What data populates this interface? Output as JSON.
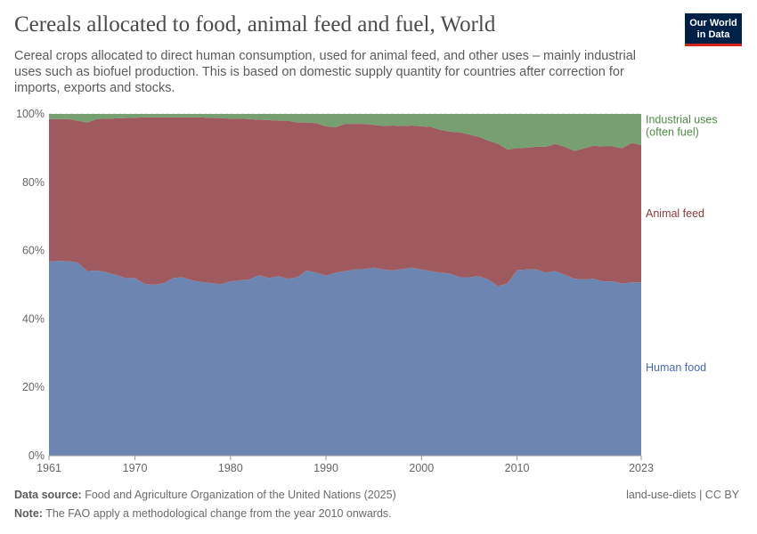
{
  "header": {
    "title": "Cereals allocated to food, animal feed and fuel, World",
    "subtitle": "Cereal crops allocated to direct human consumption, used for animal feed, and other uses – mainly industrial uses such as biofuel production. This is based on domestic supply quantity for countries after correction for imports, exports and stocks.",
    "logo_line1": "Our World",
    "logo_line2": "in Data"
  },
  "footer": {
    "source_label": "Data source:",
    "source_text": "Food and Agriculture Organization of the United Nations (2025)",
    "note_label": "Note:",
    "note_text": "The FAO apply a methodological change from the year 2010 onwards.",
    "license": "land-use-diets | CC BY"
  },
  "colors": {
    "human_food": "#6d86b1",
    "animal_feed": "#9e5a5f",
    "industrial": "#76a070",
    "human_food_label": "#4a6aa6",
    "animal_feed_label": "#8a3a3e",
    "industrial_label": "#4f8a47",
    "grid": "#dddddd",
    "axis_text": "#666666"
  },
  "chart_data": {
    "type": "area",
    "stacked": "percent",
    "x": [
      1961,
      1962,
      1963,
      1964,
      1965,
      1966,
      1967,
      1968,
      1969,
      1970,
      1971,
      1972,
      1973,
      1974,
      1975,
      1976,
      1977,
      1978,
      1979,
      1980,
      1981,
      1982,
      1983,
      1984,
      1985,
      1986,
      1987,
      1988,
      1989,
      1990,
      1991,
      1992,
      1993,
      1994,
      1995,
      1996,
      1997,
      1998,
      1999,
      2000,
      2001,
      2002,
      2003,
      2004,
      2005,
      2006,
      2007,
      2008,
      2009,
      2010,
      2011,
      2012,
      2013,
      2014,
      2015,
      2016,
      2017,
      2018,
      2019,
      2020,
      2021,
      2022,
      2023
    ],
    "x_ticks": [
      "1961",
      "1970",
      "1980",
      "1990",
      "2000",
      "2010",
      "2023"
    ],
    "x_tick_values": [
      1961,
      1970,
      1980,
      1990,
      2000,
      2010,
      2023
    ],
    "y_ticks": [
      "0%",
      "20%",
      "40%",
      "60%",
      "80%",
      "100%"
    ],
    "y_tick_values": [
      0,
      20,
      40,
      60,
      80,
      100
    ],
    "ylim": [
      0,
      100
    ],
    "series": [
      {
        "name": "Human food",
        "color_key": "human_food",
        "values": [
          56.8,
          57.0,
          56.9,
          56.5,
          54.0,
          54.2,
          53.7,
          52.9,
          52.0,
          52.0,
          50.3,
          50.0,
          50.5,
          52.0,
          52.2,
          51.3,
          50.8,
          50.5,
          50.2,
          51.0,
          51.3,
          51.6,
          52.8,
          52.0,
          52.5,
          51.8,
          52.2,
          54.2,
          53.5,
          52.7,
          53.5,
          54.0,
          54.5,
          54.6,
          55.0,
          54.5,
          54.2,
          54.6,
          55.0,
          54.5,
          54.0,
          53.5,
          53.3,
          52.2,
          52.2,
          52.5,
          51.5,
          49.6,
          50.4,
          54.3,
          54.5,
          54.5,
          53.6,
          54.0,
          53.0,
          51.8,
          51.6,
          51.8,
          51.0,
          51.0,
          50.4,
          50.7,
          50.7
        ]
      },
      {
        "name": "Animal feed",
        "color_key": "animal_feed",
        "values": [
          41.7,
          41.5,
          41.6,
          41.5,
          43.5,
          44.3,
          44.9,
          45.8,
          46.8,
          46.9,
          48.7,
          49.0,
          48.5,
          47.0,
          46.8,
          47.7,
          48.2,
          48.3,
          48.6,
          47.6,
          47.3,
          46.9,
          45.5,
          46.2,
          45.5,
          46.2,
          45.3,
          43.3,
          43.8,
          43.7,
          42.6,
          43.1,
          42.6,
          42.5,
          41.8,
          42.0,
          42.4,
          41.9,
          41.6,
          41.9,
          42.2,
          41.8,
          41.5,
          42.4,
          41.8,
          40.8,
          40.7,
          41.7,
          39.2,
          35.7,
          35.6,
          35.9,
          36.8,
          37.2,
          37.4,
          37.4,
          38.3,
          38.9,
          39.5,
          39.5,
          39.6,
          40.8,
          40.2
        ]
      },
      {
        "name": "Industrial uses (often fuel)",
        "color_key": "industrial",
        "values": [
          1.5,
          1.5,
          1.5,
          2.0,
          2.5,
          1.5,
          1.4,
          1.3,
          1.2,
          1.1,
          1.0,
          1.0,
          1.0,
          1.0,
          1.0,
          1.0,
          1.0,
          1.2,
          1.2,
          1.4,
          1.4,
          1.5,
          1.7,
          1.8,
          2.0,
          2.0,
          2.5,
          2.5,
          2.7,
          3.6,
          3.9,
          2.9,
          2.9,
          2.9,
          3.2,
          3.5,
          3.4,
          3.5,
          3.4,
          3.6,
          3.8,
          4.7,
          5.2,
          5.4,
          6.0,
          6.7,
          7.8,
          8.7,
          10.4,
          10.0,
          9.9,
          9.6,
          9.6,
          8.8,
          9.6,
          10.8,
          10.1,
          9.3,
          9.5,
          9.5,
          10.0,
          8.5,
          9.1
        ]
      }
    ],
    "legend_labels": {
      "industrial_line1": "Industrial uses",
      "industrial_line2": "(often fuel)",
      "animal_feed": "Animal feed",
      "human_food": "Human food"
    },
    "grid": true,
    "legend_placement": "right, inline labels"
  }
}
